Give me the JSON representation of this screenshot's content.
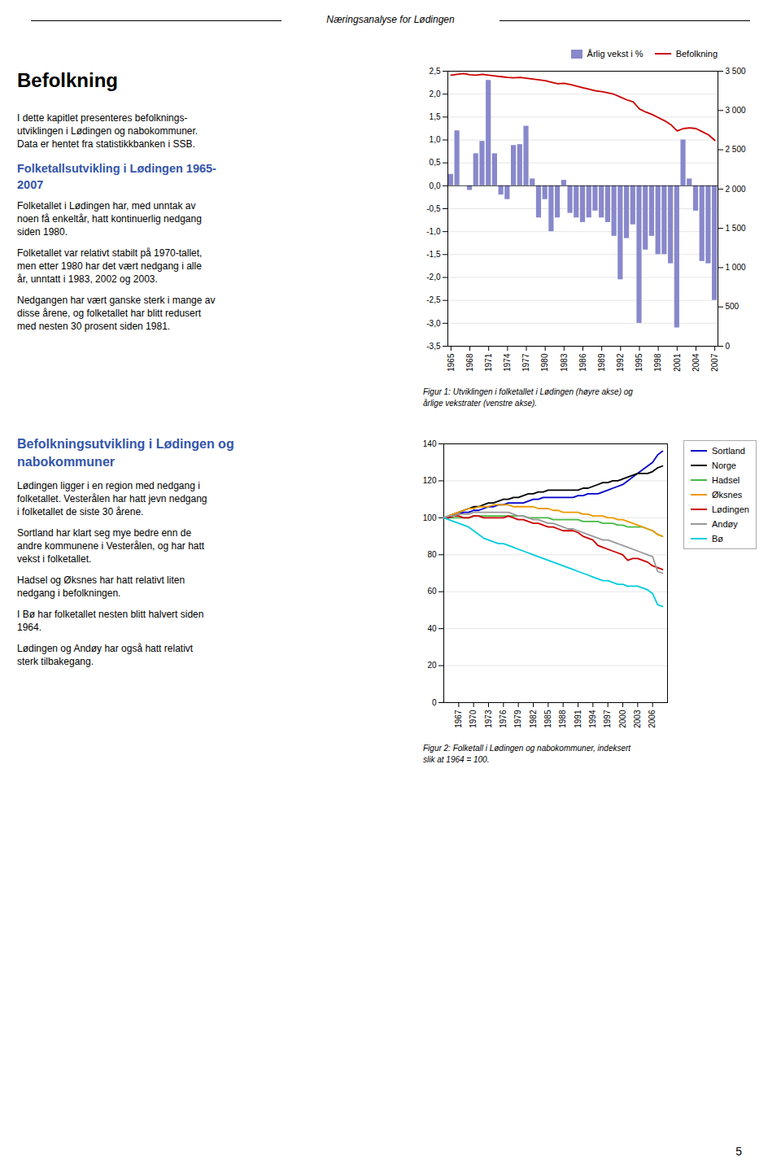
{
  "page": {
    "title": "Næringsanalyse for Lødingen",
    "page_number": "5",
    "sections": [
      [
        {
          "heading": "Befolkning"
        },
        {
          "text": "I dette kapitlet presenteres befolknings-\nutviklingen i Lødingen og nabokommuner.\nData er hentet fra statistikkbanken i SSB."
        },
        {
          "subheading": "Folketallsutvikling i Lødingen 1965-\n2007"
        },
        {
          "text": "Folketallet i Lødingen har, med unntak av\nnoen få enkeltår, hatt kontinuerlig nedgang\nsiden 1980."
        },
        {
          "text": "Folketallet var relativt stabilt på 1970-tallet,\nmen etter 1980 har det vært nedgang i alle\når, unntatt i 1983, 2002 og 2003."
        },
        {
          "text": "Nedgangen har vært ganske sterk i mange av\ndisse årene, og folketallet har blitt redusert\nmed nesten 30 prosent siden 1981."
        }
      ],
      [
        {
          "subheading": "Befolkningsutvikling i Lødingen og\nnabokommuner"
        },
        {
          "text": "Lødingen ligger i en region med nedgang i\nfolketallet.  Vesterålen har hatt jevn nedgang\ni folketallet de siste 30 årene."
        },
        {
          "text": "Sortland har klart seg mye bedre enn de\nandre kommunene i Vesterålen, og har hatt\nvekst i folketallet."
        },
        {
          "text": "Hadsel og Øksnes har hatt relativt liten\nnedgang i befolkningen."
        },
        {
          "text": "I Bø har folketallet nesten blitt halvert siden\n1964."
        },
        {
          "text": "Lødingen og Andøy har også hatt relativt\nsterk tilbakegang."
        }
      ]
    ]
  },
  "chart_data": [
    {
      "type": "bar",
      "caption": "Figur 1: Utviklingen i folketallet i Lødingen (høyre akse) og\nårlige vekstrater (venstre akse).",
      "x": [
        1965,
        1966,
        1967,
        1968,
        1969,
        1970,
        1971,
        1972,
        1973,
        1974,
        1975,
        1976,
        1977,
        1978,
        1979,
        1980,
        1981,
        1982,
        1983,
        1984,
        1985,
        1986,
        1987,
        1988,
        1989,
        1990,
        1991,
        1992,
        1993,
        1994,
        1995,
        1996,
        1997,
        1998,
        1999,
        2000,
        2001,
        2002,
        2003,
        2004,
        2005,
        2006,
        2007
      ],
      "series": [
        {
          "name": "Årlig vekst i %",
          "type": "bar",
          "color": "#8888cc",
          "values": [
            0.25,
            1.2,
            0.0,
            -0.1,
            0.7,
            0.97,
            2.3,
            0.7,
            -0.2,
            -0.3,
            0.88,
            0.9,
            1.3,
            0.15,
            -0.7,
            -0.3,
            -1.0,
            -0.7,
            0.12,
            -0.6,
            -0.7,
            -0.8,
            -0.7,
            -0.55,
            -0.7,
            -0.8,
            -1.1,
            -2.05,
            -1.15,
            -0.85,
            -3.0,
            -1.4,
            -1.1,
            -1.5,
            -1.5,
            -1.7,
            -3.1,
            1.0,
            0.15,
            -0.55,
            -1.65,
            -1.7,
            -2.5
          ]
        },
        {
          "name": "Befolkning",
          "type": "line",
          "color": "#cc0000",
          "axis": "y2",
          "values": [
            3450,
            3460,
            3470,
            3455,
            3450,
            3460,
            3450,
            3440,
            3430,
            3420,
            3415,
            3420,
            3410,
            3400,
            3390,
            3380,
            3360,
            3340,
            3345,
            3330,
            3310,
            3290,
            3270,
            3250,
            3240,
            3225,
            3205,
            3170,
            3135,
            3110,
            3020,
            2980,
            2950,
            2910,
            2870,
            2820,
            2740,
            2770,
            2780,
            2770,
            2730,
            2690,
            2620
          ]
        }
      ],
      "xlim": [
        1964.5,
        2007.5
      ],
      "xticks": [
        1965,
        1968,
        1971,
        1974,
        1977,
        1980,
        1983,
        1986,
        1989,
        1992,
        1995,
        1998,
        2001,
        2004,
        2007
      ],
      "ylim": [
        -3.5,
        2.5
      ],
      "yticks": [
        {
          "value": -3.5,
          "label": "-3,5"
        },
        {
          "value": -3.0,
          "label": "-3,0"
        },
        {
          "value": -2.5,
          "label": "-2,5"
        },
        {
          "value": -2.0,
          "label": "-2,0"
        },
        {
          "value": -1.5,
          "label": "-1,5"
        },
        {
          "value": -1.0,
          "label": "-1,0"
        },
        {
          "value": -0.5,
          "label": "-0,5"
        },
        {
          "value": 0.0,
          "label": "0,0"
        },
        {
          "value": 0.5,
          "label": "0,5"
        },
        {
          "value": 1.0,
          "label": "1,0"
        },
        {
          "value": 1.5,
          "label": "1,5"
        },
        {
          "value": 2.0,
          "label": "2,0"
        },
        {
          "value": 2.5,
          "label": "2,5"
        }
      ],
      "y2lim": [
        0,
        3500
      ],
      "y2ticks": [
        0,
        500,
        {
          "value": 1000,
          "label": "1 000"
        },
        {
          "value": 1500,
          "label": "1 500"
        },
        {
          "value": 2000,
          "label": "2 000"
        },
        {
          "value": 2500,
          "label": "2 500"
        },
        {
          "value": 3000,
          "label": "3 000"
        },
        {
          "value": 3500,
          "label": "3 500"
        }
      ],
      "grid": true,
      "legend": "top"
    },
    {
      "type": "line",
      "caption": "Figur 2: Folketall i Lødingen og nabokommuner, indeksert\nslik at 1964 = 100.",
      "x": [
        1964,
        1965,
        1966,
        1967,
        1968,
        1969,
        1970,
        1971,
        1972,
        1973,
        1974,
        1975,
        1976,
        1977,
        1978,
        1979,
        1980,
        1981,
        1982,
        1983,
        1984,
        1985,
        1986,
        1987,
        1988,
        1989,
        1990,
        1991,
        1992,
        1993,
        1994,
        1995,
        1996,
        1997,
        1998,
        1999,
        2000,
        2001,
        2002,
        2003,
        2004,
        2005,
        2006,
        2007,
        2008
      ],
      "series": [
        {
          "name": "Sortland",
          "color": "#0000cc",
          "values": [
            100,
            100,
            101,
            102,
            103,
            103,
            104,
            104,
            105,
            106,
            106,
            107,
            107,
            108,
            108,
            108,
            108,
            109,
            110,
            110,
            111,
            111,
            111,
            111,
            111,
            111,
            111,
            112,
            112,
            113,
            113,
            113,
            114,
            115,
            116,
            117,
            118,
            120,
            122,
            124,
            126,
            128,
            130,
            134,
            136
          ]
        },
        {
          "name": "Norge",
          "color": "#000000",
          "values": [
            100,
            101,
            102,
            103,
            104,
            105,
            106,
            106,
            107,
            108,
            108,
            109,
            110,
            110,
            111,
            111,
            112,
            113,
            113,
            114,
            114,
            115,
            115,
            115,
            115,
            115,
            115,
            115,
            116,
            116,
            117,
            118,
            119,
            119,
            120,
            120,
            121,
            122,
            123,
            124,
            124,
            124,
            125,
            127,
            128
          ]
        },
        {
          "name": "Hadsel",
          "color": "#44bb44",
          "values": [
            100,
            100,
            100,
            100,
            100,
            100,
            101,
            101,
            101,
            101,
            101,
            101,
            101,
            101,
            101,
            101,
            101,
            100,
            100,
            100,
            100,
            100,
            99,
            99,
            99,
            99,
            99,
            99,
            98,
            98,
            98,
            98,
            97,
            97,
            97,
            96,
            96,
            95,
            95,
            95,
            95,
            94,
            93,
            91,
            90
          ]
        },
        {
          "name": "Øksnes",
          "color": "#ee9900",
          "values": [
            100,
            101,
            102,
            103,
            104,
            105,
            105,
            106,
            106,
            106,
            107,
            107,
            107,
            107,
            106,
            106,
            106,
            106,
            106,
            105,
            105,
            105,
            104,
            104,
            103,
            103,
            103,
            103,
            102,
            102,
            101,
            101,
            101,
            100,
            100,
            99,
            99,
            98,
            97,
            96,
            95,
            94,
            93,
            91,
            90
          ]
        },
        {
          "name": "Lødingen",
          "color": "#cc0000",
          "values": [
            100,
            100,
            101,
            101,
            100,
            100,
            101,
            101,
            100,
            100,
            100,
            100,
            100,
            101,
            100,
            99,
            99,
            98,
            97,
            97,
            96,
            95,
            95,
            94,
            93,
            93,
            93,
            92,
            90,
            89,
            88,
            85,
            84,
            83,
            82,
            81,
            80,
            77,
            78,
            78,
            77,
            76,
            74,
            73,
            72
          ]
        },
        {
          "name": "Andøy",
          "color": "#999999",
          "values": [
            100,
            101,
            101,
            102,
            102,
            102,
            103,
            103,
            103,
            103,
            103,
            103,
            103,
            103,
            102,
            101,
            101,
            100,
            99,
            99,
            98,
            97,
            97,
            96,
            95,
            94,
            94,
            93,
            92,
            91,
            90,
            89,
            88,
            88,
            87,
            86,
            85,
            84,
            83,
            82,
            81,
            80,
            79,
            71,
            70
          ]
        },
        {
          "name": "Bø",
          "color": "#00ccdd",
          "values": [
            100,
            99,
            98,
            97,
            96,
            95,
            93,
            91,
            89,
            88,
            87,
            86,
            86,
            85,
            84,
            83,
            82,
            81,
            80,
            79,
            78,
            77,
            76,
            75,
            74,
            73,
            72,
            71,
            70,
            69,
            68,
            67,
            66,
            66,
            65,
            64,
            64,
            63,
            63,
            63,
            62,
            61,
            59,
            53,
            52
          ]
        }
      ],
      "xlim": [
        1964,
        2009
      ],
      "xticks": [
        1967,
        1970,
        1973,
        1976,
        1979,
        1982,
        1985,
        1988,
        1991,
        1994,
        1997,
        2000,
        2003,
        2006
      ],
      "ylim": [
        0,
        140
      ],
      "yticks": [
        0,
        20,
        40,
        60,
        80,
        100,
        120,
        140
      ],
      "grid": true,
      "legend": "right"
    }
  ]
}
